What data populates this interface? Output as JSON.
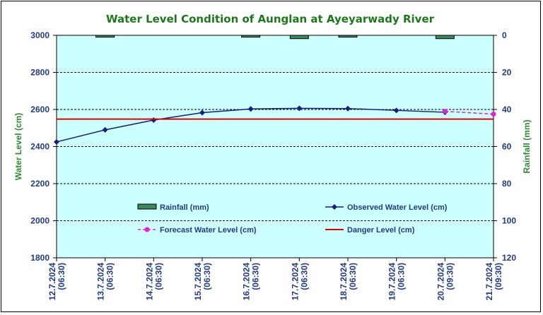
{
  "chart_data": {
    "type": "line",
    "title": "Water Level Condition of Aunglan at Ayeyarwady River",
    "ylabel": "Water Level (cm)",
    "y2label": "Rainfall (mm)",
    "ylim": [
      1800,
      3000
    ],
    "yticks": [
      1800,
      2000,
      2200,
      2400,
      2600,
      2800,
      3000
    ],
    "y2lim": [
      0,
      120
    ],
    "y2ticks": [
      0,
      20,
      40,
      60,
      80,
      100,
      120
    ],
    "y2_inverted": true,
    "categories": [
      [
        "12.7.2024",
        "(06:30)"
      ],
      [
        "13.7.2024",
        "(06:30)"
      ],
      [
        "14.7.2024",
        "(06:30)"
      ],
      [
        "15.7.2024",
        "(06:30)"
      ],
      [
        "16.7.2024",
        "(06:30)"
      ],
      [
        "17.7.2024",
        "(06:30)"
      ],
      [
        "18.7.2024",
        "(06:30)"
      ],
      [
        "19.7.2024",
        "(06:30)"
      ],
      [
        "20.7.2024",
        "(09:30)"
      ],
      [
        "21.7.2024",
        "(09:30)"
      ]
    ],
    "series": [
      {
        "name": "Rainfall (mm)",
        "kind": "bar",
        "axis": "right",
        "color": "#3a8a5a",
        "values": [
          null,
          1,
          null,
          null,
          1,
          1.8,
          1,
          null,
          1.8,
          null
        ]
      },
      {
        "name": "Observed Water Level (cm)",
        "kind": "line",
        "color": "#1a1a80",
        "values": [
          2425,
          2490,
          2543,
          2583,
          2603,
          2606,
          2605,
          2595,
          2585,
          null
        ]
      },
      {
        "name": "Forecast Water Level (cm)",
        "kind": "line-dashed",
        "color": "#e020e0",
        "values": [
          null,
          null,
          null,
          null,
          null,
          null,
          null,
          null,
          2590,
          2575
        ]
      },
      {
        "name": "Danger Level (cm)",
        "kind": "hline",
        "color": "#e00000",
        "value": 2548
      }
    ],
    "grid": "horizontal-dashed",
    "plot_background": "#ccffff"
  }
}
